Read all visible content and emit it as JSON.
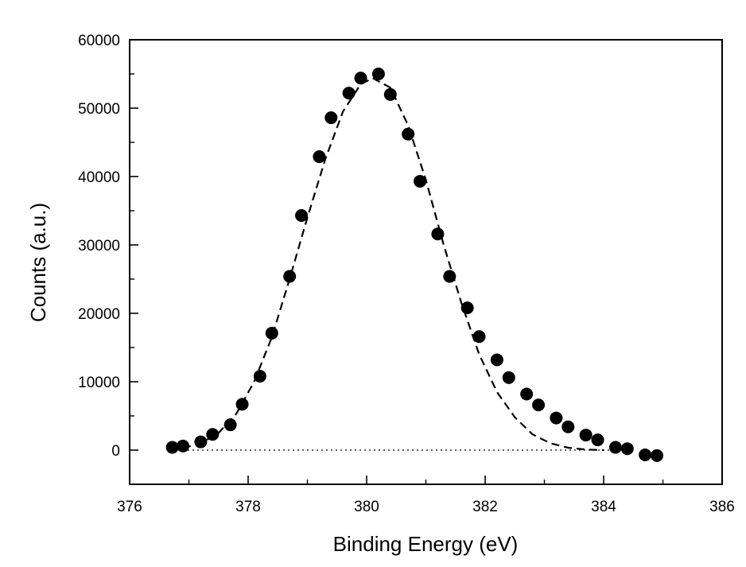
{
  "chart_data": {
    "type": "scatter",
    "title": "",
    "xlabel": "Binding Energy (eV)",
    "ylabel": "Counts (a.u.)",
    "xlim": [
      376,
      386
    ],
    "ylim": [
      -5000,
      60000
    ],
    "x_ticks": [
      376,
      378,
      380,
      382,
      384,
      386
    ],
    "x_tick_labels": [
      "376",
      "378",
      "380",
      "382",
      "384",
      "386"
    ],
    "y_ticks": [
      0,
      10000,
      20000,
      30000,
      40000,
      50000,
      60000
    ],
    "y_tick_labels": [
      "0",
      "10000",
      "20000",
      "30000",
      "40000",
      "50000",
      "60000"
    ],
    "grid": false,
    "legend": "none",
    "series": [
      {
        "style": "filled-circle-markers",
        "color": "#000000",
        "points": [
          [
            376.72,
            400
          ],
          [
            376.9,
            600
          ],
          [
            377.2,
            1200
          ],
          [
            377.4,
            2300
          ],
          [
            377.7,
            3700
          ],
          [
            377.9,
            6700
          ],
          [
            378.2,
            10800
          ],
          [
            378.4,
            17100
          ],
          [
            378.7,
            25400
          ],
          [
            378.9,
            34300
          ],
          [
            379.2,
            42900
          ],
          [
            379.4,
            48600
          ],
          [
            379.7,
            52200
          ],
          [
            379.9,
            54400
          ],
          [
            380.2,
            55000
          ],
          [
            380.4,
            52000
          ],
          [
            380.7,
            46200
          ],
          [
            380.9,
            39300
          ],
          [
            381.2,
            31600
          ],
          [
            381.4,
            25400
          ],
          [
            381.7,
            20800
          ],
          [
            381.9,
            16600
          ],
          [
            382.2,
            13200
          ],
          [
            382.4,
            10600
          ],
          [
            382.7,
            8200
          ],
          [
            382.9,
            6600
          ],
          [
            383.2,
            4700
          ],
          [
            383.4,
            3400
          ],
          [
            383.7,
            2200
          ],
          [
            383.9,
            1500
          ],
          [
            384.2,
            400
          ],
          [
            384.4,
            200
          ],
          [
            384.7,
            -700
          ],
          [
            384.9,
            -800
          ]
        ]
      },
      {
        "style": "dashed-line",
        "color": "#000000",
        "points": [
          [
            376.9,
            300
          ],
          [
            377.2,
            1000
          ],
          [
            377.5,
            2500
          ],
          [
            377.8,
            5300
          ],
          [
            378.1,
            10000
          ],
          [
            378.4,
            16500
          ],
          [
            378.7,
            25000
          ],
          [
            379.0,
            34000
          ],
          [
            379.3,
            42500
          ],
          [
            379.6,
            49500
          ],
          [
            379.9,
            53500
          ],
          [
            380.1,
            54400
          ],
          [
            380.4,
            53000
          ],
          [
            380.7,
            47500
          ],
          [
            381.0,
            39500
          ],
          [
            381.3,
            30000
          ],
          [
            381.6,
            21500
          ],
          [
            381.9,
            14000
          ],
          [
            382.2,
            8500
          ],
          [
            382.5,
            4800
          ],
          [
            382.8,
            2300
          ],
          [
            383.1,
            1000
          ],
          [
            383.4,
            350
          ],
          [
            383.7,
            80
          ],
          [
            384.0,
            0
          ]
        ]
      },
      {
        "style": "dotted-baseline",
        "color": "#000000",
        "points": [
          [
            376.9,
            0
          ],
          [
            384.4,
            0
          ]
        ]
      }
    ]
  }
}
